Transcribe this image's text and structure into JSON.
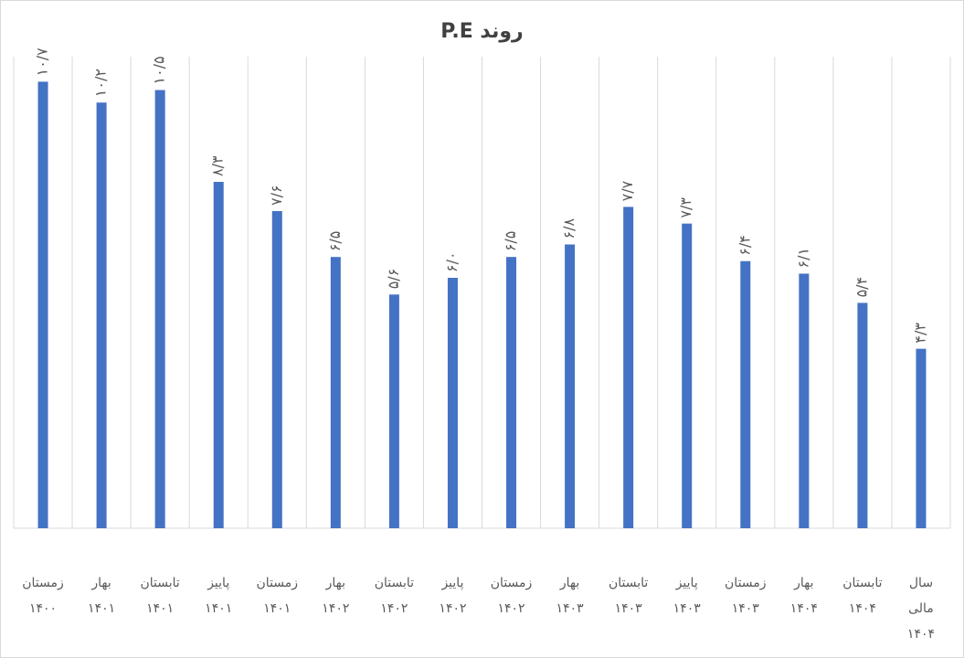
{
  "chart_data": {
    "type": "bar",
    "title": "روند P.E",
    "xlabel": "",
    "ylabel": "",
    "ylim": [
      0,
      11.3
    ],
    "grid": "vertical category separators",
    "legend": "none",
    "bar_color": "#4472c4",
    "categories": [
      "زمستان\n۱۴۰۰",
      "بهار\n۱۴۰۱",
      "تابستان\n۱۴۰۱",
      "پاییز\n۱۴۰۱",
      "زمستان\n۱۴۰۱",
      "بهار\n۱۴۰۲",
      "تابستان\n۱۴۰۲",
      "پاییز\n۱۴۰۲",
      "زمستان\n۱۴۰۲",
      "بهار\n۱۴۰۳",
      "تابستان\n۱۴۰۳",
      "پاییز\n۱۴۰۳",
      "زمستان\n۱۴۰۳",
      "بهار\n۱۴۰۴",
      "تابستان\n۱۴۰۴",
      "سال\nمالی\n۱۴۰۴"
    ],
    "values": [
      10.7,
      10.2,
      10.5,
      8.3,
      7.6,
      6.5,
      5.6,
      6.0,
      6.5,
      6.8,
      7.7,
      7.3,
      6.4,
      6.1,
      5.4,
      4.3
    ],
    "data_labels": [
      "۱۰/۷",
      "۱۰/۲",
      "۱۰/۵",
      "۸/۳",
      "۷/۶",
      "۶/۵",
      "۵/۶",
      "۶/۰",
      "۶/۵",
      "۶/۸",
      "۷/۷",
      "۷/۳",
      "۶/۴",
      "۶/۱",
      "۵/۴",
      "۴/۳"
    ]
  }
}
